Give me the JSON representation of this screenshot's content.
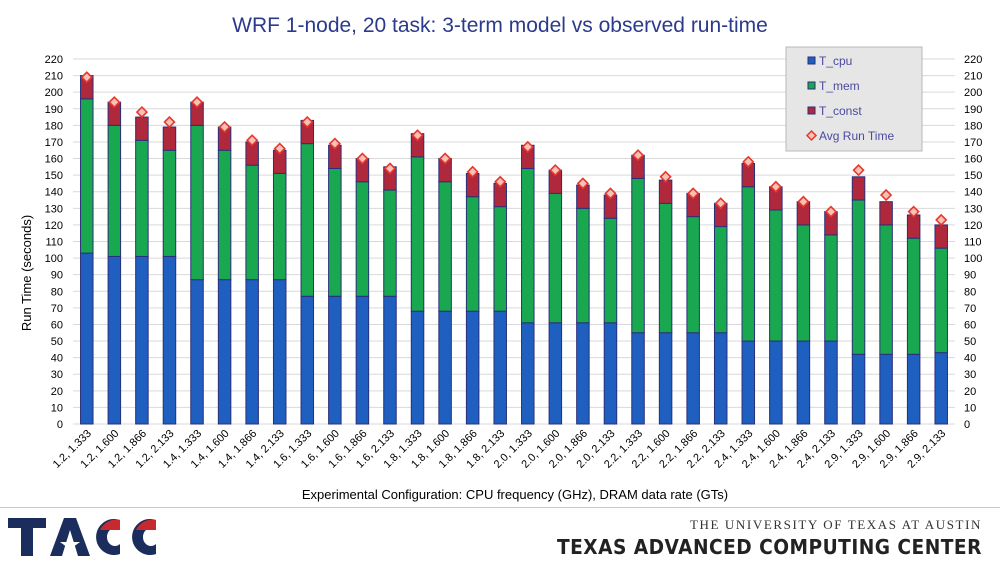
{
  "chart_data": {
    "type": "bar",
    "stacked": true,
    "title": "WRF 1-node, 20 task: 3-term model vs observed run-time",
    "xlabel": "Experimental Configuration: CPU frequency (GHz), DRAM data rate (GTs)",
    "ylabel": "Run Time (seconds)",
    "ylim": [
      0,
      220
    ],
    "y_tick_step": 10,
    "y_axis_both_sides": true,
    "legend_position": "top-right",
    "categories": [
      "1.2, 1.333",
      "1.2, 1.600",
      "1.2, 1.866",
      "1.2, 2.133",
      "1.4, 1.333",
      "1.4, 1.600",
      "1.4, 1.866",
      "1.4, 2.133",
      "1.6, 1.333",
      "1.6, 1.600",
      "1.6, 1.866",
      "1.6, 2.133",
      "1.8, 1.333",
      "1.8, 1.600",
      "1.8, 1.866",
      "1.8, 2.133",
      "2.0, 1.333",
      "2.0, 1.600",
      "2.0, 1.866",
      "2.0, 2.133",
      "2.2, 1.333",
      "2.2, 1.600",
      "2.2, 1.866",
      "2.2, 2.133",
      "2.4, 1.333",
      "2.4, 1.600",
      "2.4, 1.866",
      "2.4, 2.133",
      "2.9, 1.333",
      "2.9, 1.600",
      "2.9, 1.866",
      "2.9, 2.133"
    ],
    "series": [
      {
        "name": "T_cpu",
        "kind": "bar",
        "color": "#1f5fbf",
        "values": [
          103,
          101,
          101,
          101,
          87,
          87,
          87,
          87,
          77,
          77,
          77,
          77,
          68,
          68,
          68,
          68,
          61,
          61,
          61,
          61,
          55,
          55,
          55,
          55,
          50,
          50,
          50,
          50,
          42,
          42,
          42,
          43
        ]
      },
      {
        "name": "T_mem",
        "kind": "bar",
        "color": "#19a84f",
        "values": [
          93,
          79,
          70,
          64,
          93,
          78,
          69,
          64,
          92,
          77,
          69,
          64,
          93,
          78,
          69,
          63,
          93,
          78,
          69,
          63,
          93,
          78,
          70,
          64,
          93,
          79,
          70,
          64,
          93,
          78,
          70,
          63
        ]
      },
      {
        "name": "T_const",
        "kind": "bar",
        "color": "#b0283c",
        "values": [
          14,
          14,
          14,
          14,
          14,
          14,
          14,
          14,
          14,
          14,
          14,
          14,
          14,
          14,
          14,
          14,
          14,
          14,
          14,
          14,
          14,
          14,
          14,
          14,
          14,
          14,
          14,
          14,
          14,
          14,
          14,
          14
        ]
      },
      {
        "name": "Avg Run Time",
        "kind": "marker",
        "color": "#e8372c",
        "values": [
          209,
          194,
          188,
          182,
          194,
          179,
          171,
          166,
          182,
          169,
          160,
          154,
          174,
          160,
          152,
          146,
          167,
          153,
          145,
          139,
          162,
          149,
          139,
          133,
          158,
          143,
          134,
          128,
          153,
          138,
          128,
          123
        ]
      }
    ]
  },
  "footer": {
    "university": "THE UNIVERSITY OF TEXAS AT AUSTIN",
    "center_name": "TEXAS ADVANCED COMPUTING CENTER"
  }
}
